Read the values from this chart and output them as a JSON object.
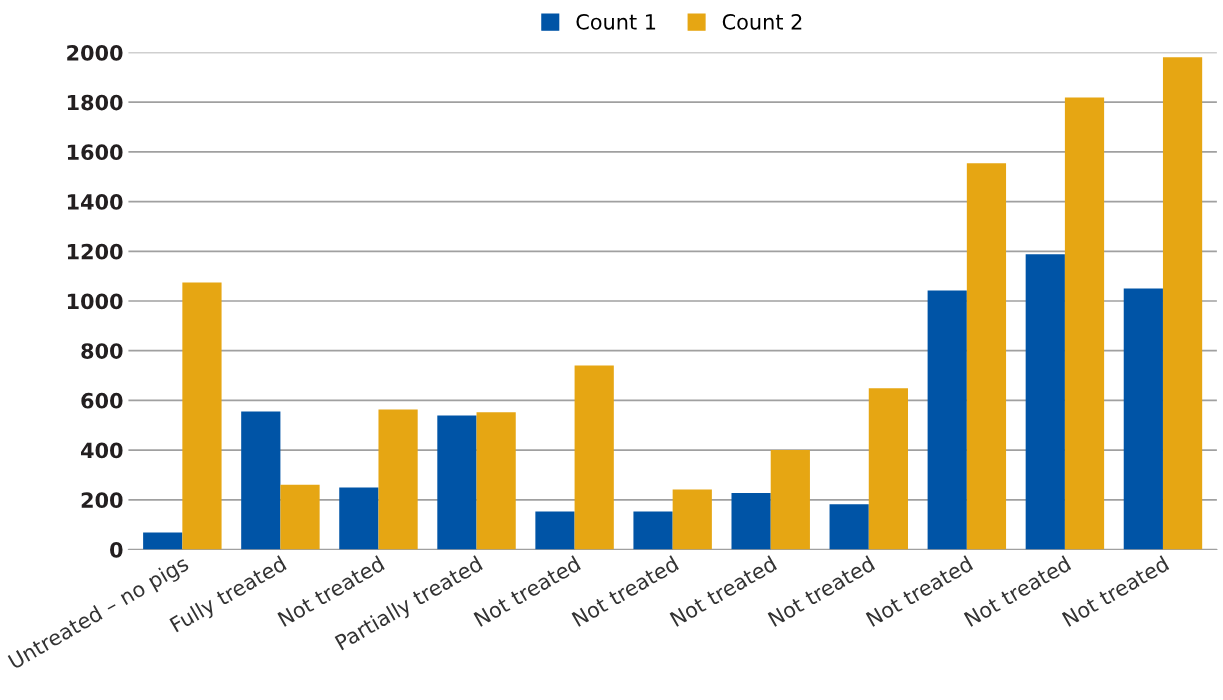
{
  "chart_data": {
    "type": "bar",
    "categories": [
      "Untreated – no pigs",
      "Fully treated",
      "Not treated",
      "Partially treated",
      "Not treated",
      "Not treated",
      "Not treated",
      "Not treated",
      "Not treated",
      "Not treated",
      "Not treated"
    ],
    "series": [
      {
        "name": "Count 1",
        "color": "#0054a6",
        "values": [
          68,
          555,
          250,
          539,
          153,
          153,
          227,
          182,
          1042,
          1188,
          1050
        ]
      },
      {
        "name": "Count 2",
        "color": "#e6a613",
        "values": [
          1074,
          261,
          563,
          552,
          740,
          241,
          400,
          649,
          1554,
          1819,
          1981
        ]
      }
    ],
    "ylim": [
      0,
      2000
    ],
    "yticks": [
      0,
      200,
      400,
      600,
      800,
      1000,
      1200,
      1400,
      1600,
      1800,
      2000
    ],
    "grid": "y",
    "legend": "top"
  }
}
